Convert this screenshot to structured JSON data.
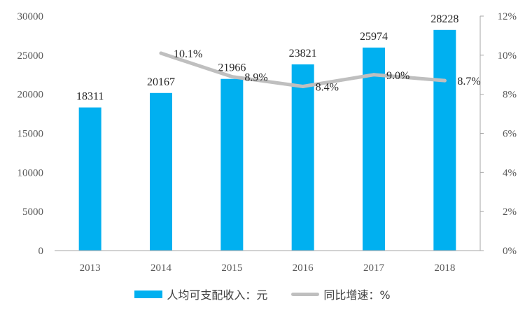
{
  "chart_data": {
    "type": "bar",
    "categories": [
      "2013",
      "2014",
      "2015",
      "2016",
      "2017",
      "2018"
    ],
    "series": [
      {
        "name": "人均可支配收入：元",
        "type": "bar",
        "axis": "left",
        "values": [
          18311,
          20167,
          21966,
          23821,
          25974,
          28228
        ],
        "labels": [
          "18311",
          "20167",
          "21966",
          "23821",
          "25974",
          "28228"
        ]
      },
      {
        "name": "同比增速：%",
        "type": "line",
        "axis": "right",
        "values": [
          null,
          10.1,
          8.9,
          8.4,
          9.0,
          8.7
        ],
        "labels": [
          "",
          "10.1%",
          "8.9%",
          "8.4%",
          "9.0%",
          "8.7%"
        ]
      }
    ],
    "y_left": {
      "ylim": [
        0,
        30000
      ],
      "ticks": [
        "0",
        "5000",
        "10000",
        "15000",
        "20000",
        "25000",
        "30000"
      ]
    },
    "y_right": {
      "ylim": [
        0,
        12
      ],
      "ticks": [
        "0%",
        "2%",
        "4%",
        "6%",
        "8%",
        "10%",
        "12%"
      ]
    },
    "legend_position": "bottom",
    "grid": false
  },
  "legend": {
    "bar_label": "人均可支配收入：元",
    "line_label": "同比增速：%"
  },
  "colors": {
    "bar": "#00B0F0",
    "line": "#BFBFBF",
    "axis": "#A6A6A6"
  }
}
